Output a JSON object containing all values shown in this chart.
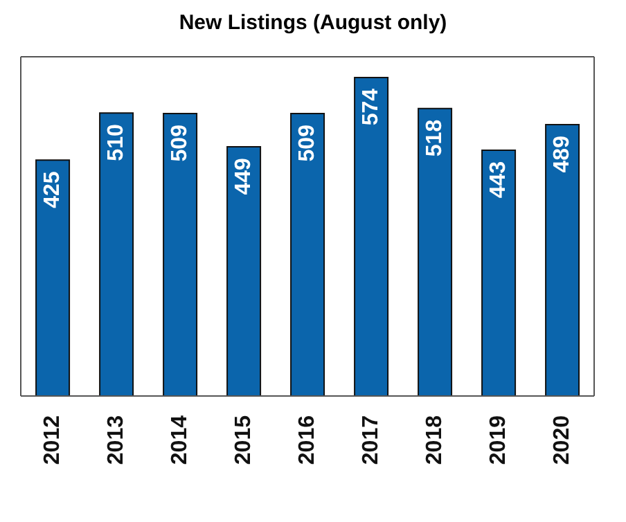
{
  "chart_data": {
    "type": "bar",
    "title": "New Listings (August only)",
    "categories": [
      "2012",
      "2013",
      "2014",
      "2015",
      "2016",
      "2017",
      "2018",
      "2019",
      "2020"
    ],
    "values": [
      425,
      510,
      509,
      449,
      509,
      574,
      518,
      443,
      489
    ],
    "color": "#0b65ac",
    "relative": false,
    "data_labels": true,
    "grid": false
  }
}
